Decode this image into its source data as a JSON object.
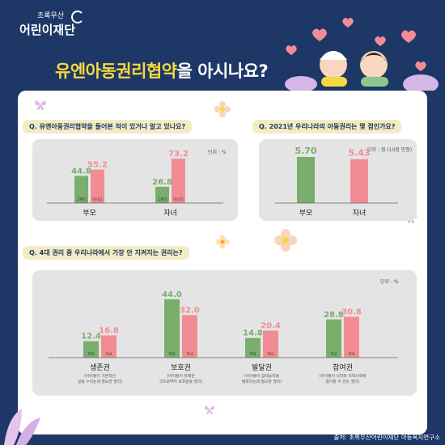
{
  "logo": {
    "sub": "초록우산",
    "main": "어린이재단"
  },
  "title": {
    "highlight": "유엔아동권리협약",
    "rest": "을 아시나요?"
  },
  "colors": {
    "bg": "#1d3767",
    "green": "#79ae6c",
    "pink": "#f28c94",
    "highlight": "#f6d93f",
    "box": "#e4e4e4"
  },
  "questions": {
    "q1": "Q. 유엔아동권리협약을 들어본 적이 있거나 알고 있나요?",
    "q2": "Q. 2021년 우리나라의 아동권리는 몇 점인가요?",
    "q3": "Q. 4대 권리 중 우리나라에서 가장 안 지켜지는 권리는?"
  },
  "units": {
    "u1": "단위 : %",
    "u2": "단위 : 점 (10점 만점)",
    "u3": "단위 : %"
  },
  "source": "출처: 초록우산어린이재단 아동복지연구소",
  "icons": [
    "butterfly-icon",
    "flower-icon",
    "heart-icon"
  ],
  "chart_data": [
    {
      "type": "bar",
      "title": "Q. 유엔아동권리협약을 들어본 적이 있거나 알고 있나요?",
      "categories": [
        "부모",
        "자녀"
      ],
      "bar_labels": [
        "그렇다",
        "아니다"
      ],
      "series": [
        {
          "values": [
            44.8,
            26.8
          ],
          "display": [
            "44.8",
            "26.8"
          ],
          "color": "#79ae6c"
        },
        {
          "values": [
            55.2,
            73.2
          ],
          "display": [
            "55.2",
            "73.2"
          ],
          "color": "#f28c94"
        }
      ],
      "ylim": [
        0,
        100
      ],
      "unit": "단위 : %"
    },
    {
      "type": "bar",
      "title": "Q. 2021년 우리나라의 아동권리는 몇 점인가요?",
      "categories": [
        "부모",
        "자녀"
      ],
      "values": [
        5.7,
        5.43
      ],
      "display": [
        "5.70",
        "5.43"
      ],
      "colors": [
        "#79ae6c",
        "#f28c94"
      ],
      "ylim": [
        0,
        10
      ],
      "unit": "단위 : 점 (10점 만점)"
    },
    {
      "type": "bar",
      "title": "Q. 4대 권리 중 우리나라에서 가장 안 지켜지는 권리는?",
      "categories": [
        "생존권",
        "보호권",
        "발달권",
        "참여권"
      ],
      "descriptions": [
        [
          "(아이들이 기본적인",
          "삶을 누리는데 필요한 권리)"
        ],
        [
          "(아이들이 유해한",
          "것으로부터 보호받을 권리)"
        ],
        [
          "(아이들이 잠재능력을",
          "발휘하는데 필요한 권리)"
        ],
        [
          "(아이들이 나라와 지역사회에",
          "참가할 수 있는 권리)"
        ]
      ],
      "bar_labels": [
        "부모",
        "자녀"
      ],
      "series": [
        {
          "values": [
            12.4,
            44.0,
            14.8,
            28.8
          ],
          "display": [
            "12.4",
            "44.0",
            "14.8",
            "28.8"
          ],
          "color": "#79ae6c"
        },
        {
          "values": [
            16.8,
            32.0,
            20.4,
            30.8
          ],
          "display": [
            "16.8",
            "32.0",
            "20.4",
            "30.8"
          ],
          "color": "#f28c94"
        }
      ],
      "ylim": [
        0,
        50
      ],
      "unit": "단위 : %"
    }
  ]
}
